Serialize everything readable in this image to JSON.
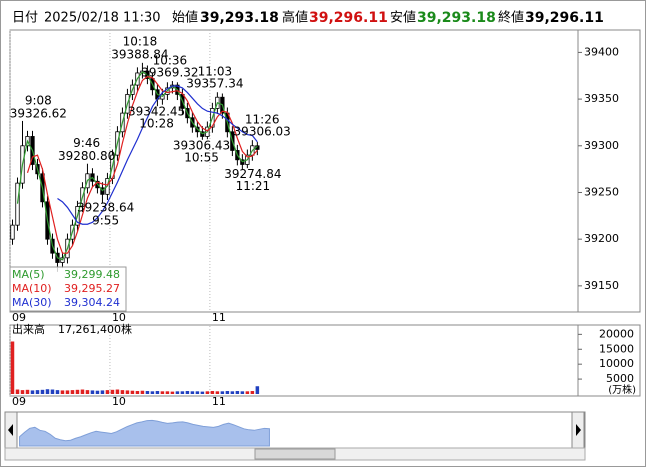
{
  "chart_data": {
    "type": "candlestick",
    "info": {
      "date_label": "日付",
      "datetime": "2025/02/18 11:30",
      "open_label": "始値",
      "open": "39,293.18",
      "high_label": "高値",
      "high": "39,296.11",
      "low_label": "安値",
      "low": "39,293.18",
      "close_label": "終値",
      "close": "39,296.11"
    },
    "x": [
      0,
      3,
      6,
      9,
      12,
      15,
      18,
      21,
      24,
      27,
      30,
      33,
      36,
      39,
      42,
      45,
      48,
      51,
      54,
      57,
      60,
      63,
      66,
      69,
      72,
      75,
      78,
      81,
      84,
      87,
      90,
      93,
      96,
      99,
      102,
      105,
      108,
      111,
      114,
      117,
      120,
      123,
      126,
      129,
      132,
      135,
      138,
      141,
      144,
      147
    ],
    "xlim": [
      0,
      341
    ],
    "xticks": [
      {
        "value": 0,
        "label": "09"
      },
      {
        "value": 60,
        "label": "10"
      },
      {
        "value": 120,
        "label": "11"
      }
    ],
    "open": [
      39200,
      39215,
      39260,
      39300,
      39310,
      39280,
      39270,
      39240,
      39200,
      39185,
      39175,
      39180,
      39200,
      39215,
      39235,
      39255,
      39270,
      39262,
      39255,
      39248,
      39265,
      39290,
      39315,
      39335,
      39355,
      39365,
      39378,
      39380,
      39372,
      39360,
      39350,
      39355,
      39362,
      39365,
      39355,
      39340,
      39330,
      39320,
      39315,
      39310,
      39320,
      39340,
      39352,
      39335,
      39315,
      39295,
      39285,
      39280,
      39290,
      39300
    ],
    "high": [
      39221,
      39266,
      39326.62,
      39316,
      39316,
      39286,
      39276,
      39246,
      39206,
      39191,
      39186,
      39206,
      39221,
      39241,
      39261,
      39280.8,
      39276,
      39268,
      39261,
      39271,
      39296,
      39321,
      39341,
      39361,
      39371,
      39384,
      39388.84,
      39386,
      39378,
      39366,
      39361,
      39368,
      39369.32,
      39368,
      39361,
      39346,
      39336,
      39326,
      39321,
      39326,
      39346,
      39357.34,
      39356,
      39341,
      39321,
      39301,
      39291,
      39296,
      39306.03,
      39304
    ],
    "low": [
      39194,
      39209,
      39254,
      39294,
      39274,
      39264,
      39234,
      39194,
      39179,
      39165,
      39169,
      39174,
      39194,
      39209,
      39229,
      39249,
      39256,
      39249,
      39238.64,
      39242,
      39259,
      39284,
      39309,
      39329,
      39349,
      39359,
      39372,
      39366,
      39354,
      39342.45,
      39344,
      39349,
      39356,
      39349,
      39334,
      39324,
      39314,
      39309,
      39306.43,
      39307,
      39314,
      39334,
      39329,
      39309,
      39289,
      39279,
      39274.84,
      39276,
      39284,
      39290
    ],
    "close": [
      39215,
      39260,
      39300,
      39310,
      39280,
      39270,
      39240,
      39200,
      39185,
      39175,
      39180,
      39200,
      39215,
      39235,
      39255,
      39270,
      39262,
      39255,
      39248,
      39265,
      39290,
      39315,
      39335,
      39355,
      39365,
      39378,
      39380,
      39372,
      39360,
      39350,
      39355,
      39362,
      39365,
      39355,
      39340,
      39330,
      39320,
      39315,
      39310,
      39320,
      39340,
      39352,
      39335,
      39315,
      39295,
      39285,
      39280,
      39290,
      39300,
      39296.11
    ],
    "up_color": "#ffffff",
    "down_color": "#000000",
    "wick_color": "#000000",
    "ylim": [
      39122,
      39424
    ],
    "yticks": [
      39150,
      39200,
      39250,
      39300,
      39350,
      39400
    ],
    "series": [
      {
        "name": "MA(5)",
        "legend_value": "39,299.48",
        "color": "#2e9a2e",
        "values": [
          null,
          39238,
          39280,
          39305,
          39295,
          39275,
          39255,
          39220,
          39193,
          39180,
          39178,
          39190,
          39208,
          39225,
          39245,
          39263,
          39266,
          39259,
          39252,
          39257,
          39278,
          39303,
          39325,
          39345,
          39360,
          39372,
          39379,
          39376,
          39366,
          39355,
          39353,
          39359,
          39364,
          39360,
          39348,
          39335,
          39325,
          39318,
          39313,
          39315,
          39330,
          39346,
          39344,
          39325,
          39305,
          39290,
          39283,
          39285,
          39295,
          39299.48
        ]
      },
      {
        "name": "MA(10)",
        "legend_value": "39,295.27",
        "color": "#e02020",
        "values": [
          null,
          null,
          null,
          39271,
          39288,
          39290,
          39275,
          39248,
          39224,
          39200,
          39185,
          39185,
          39193,
          39208,
          39226,
          39244,
          39256,
          39261,
          39259,
          39258,
          39265,
          39280,
          39303,
          39324,
          39343,
          39358,
          39370,
          39374,
          39373,
          39366,
          39359,
          39357,
          39358,
          39359,
          39356,
          39348,
          39336,
          39326,
          39319,
          39316,
          39321,
          39331,
          39337,
          39336,
          39324,
          39308,
          39294,
          39288,
          39289,
          39295.27
        ]
      },
      {
        "name": "MA(30)",
        "legend_value": "39,304.24",
        "color": "#2030d0",
        "values": [
          null,
          null,
          null,
          null,
          null,
          null,
          null,
          null,
          null,
          39243.5,
          39240,
          39234,
          39226,
          39218,
          39216,
          39216,
          39218,
          39223,
          39230,
          39239,
          39250,
          39261,
          39273,
          39285,
          39296,
          39307,
          39319,
          39330,
          39342,
          39350,
          39357,
          39361,
          39364,
          39364,
          39362,
          39357,
          39351,
          39345,
          39340,
          39337,
          39336,
          39335,
          39332,
          39328,
          39323,
          39319,
          39315,
          39312,
          39311,
          39304.24
        ]
      }
    ],
    "annotations": [
      {
        "time": "9:08",
        "text": "39326.62",
        "value": 39326.62
      },
      {
        "time": "10:18",
        "text": "39388.84",
        "value": 39388.84
      },
      {
        "time": "10:36",
        "text": "39369.32",
        "value": 39369.32
      },
      {
        "time": "11:03",
        "text": "39357.34",
        "value": 39357.34
      },
      {
        "time": "9:46",
        "text": "39280.80",
        "value": 39280.8
      },
      {
        "time": "9:55",
        "text": "39238.64",
        "value": 39238.64
      },
      {
        "time": "10:28",
        "text": "39342.45",
        "value": 39342.45
      },
      {
        "time": "10:55",
        "text": "39306.43",
        "value": 39306.43
      },
      {
        "time": "11:21",
        "text": "39274.84",
        "value": 39274.84
      },
      {
        "time": "11:26",
        "text": "39306.03",
        "value": 39306.03
      }
    ],
    "volume": {
      "title": "出来高",
      "total": "17,261,400株",
      "unit": "(万株)",
      "up_color": "#e02020",
      "down_color": "#2040c0",
      "values": [
        17600,
        1500,
        1300,
        1400,
        1200,
        1300,
        1400,
        1600,
        1500,
        1300,
        1200,
        1200,
        1300,
        1400,
        1500,
        1300,
        1200,
        1100,
        1200,
        1300,
        1400,
        1500,
        1300,
        1200,
        1100,
        1000,
        1100,
        1000,
        900,
        1000,
        900,
        900,
        800,
        900,
        900,
        1000,
        900,
        900,
        800,
        900,
        1000,
        900,
        900,
        1000,
        900,
        1000,
        900,
        900,
        1000,
        2600
      ],
      "ylim": [
        0,
        22800
      ],
      "yticks": [
        5000,
        10000,
        15000,
        20000
      ]
    },
    "navigator_color": "#a8c0ec"
  }
}
